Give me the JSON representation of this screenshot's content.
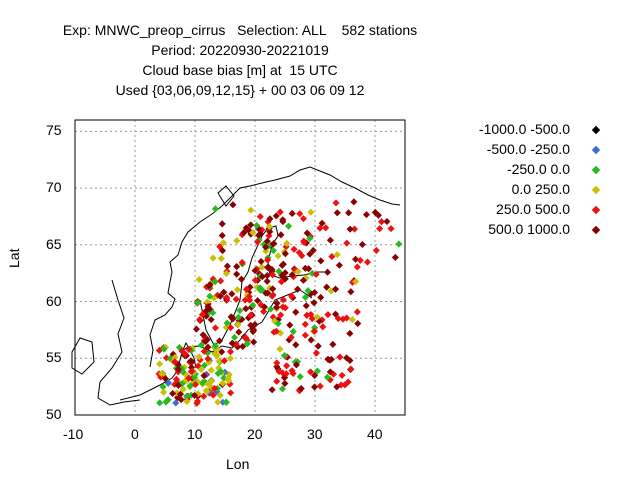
{
  "header": {
    "line1": "Exp: MNWC_preop_cirrus   Selection: ALL    582 stations",
    "line2": "Period: 20220930-20221019",
    "line3": "Cloud base bias [m] at  15 UTC",
    "line4": "Used {03,06,09,12,15} + 00 03 06 09 12"
  },
  "chart_data": {
    "type": "scatter",
    "xlabel": "Lon",
    "ylabel": "Lat",
    "xlim": [
      -10,
      45
    ],
    "ylim": [
      50,
      76
    ],
    "xticks": [
      "-10",
      "0",
      "10",
      "20",
      "30",
      "40"
    ],
    "yticks": [
      "50",
      "55",
      "60",
      "65",
      "70",
      "75"
    ],
    "grid": true,
    "legend_position": "right",
    "legend": [
      {
        "label": "-1000.0 -500.0",
        "color": "#000000"
      },
      {
        "label": "-500.0 -250.0",
        "color": "#3a6fd8"
      },
      {
        "label": "-250.0 0.0",
        "color": "#22bb22"
      },
      {
        "label": "0.0 250.0",
        "color": "#c8c000"
      },
      {
        "label": "250.0 500.0",
        "color": "#ee1111"
      },
      {
        "label": "500.0 1000.0",
        "color": "#880000"
      }
    ]
  }
}
